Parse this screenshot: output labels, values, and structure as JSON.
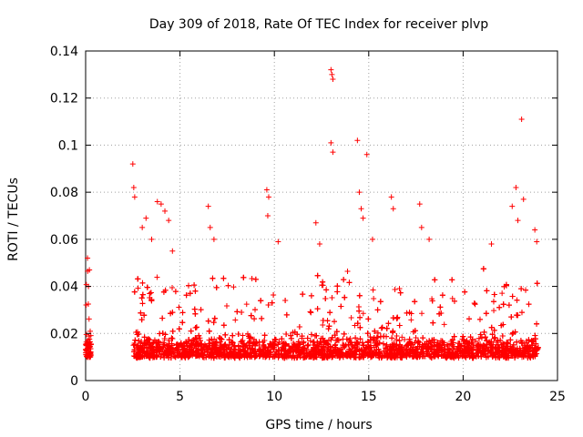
{
  "chart_data": {
    "type": "scatter",
    "title": "Day 309 of 2018, Rate Of TEC Index for receiver plvp",
    "xlabel": "GPS time / hours",
    "ylabel": "ROTI / TECUs",
    "xlim": [
      0,
      25
    ],
    "ylim": [
      0,
      0.14
    ],
    "xticks": [
      0,
      5,
      10,
      15,
      20,
      25
    ],
    "xtick_labels": [
      "0",
      "5",
      "10",
      "15",
      "20",
      "25"
    ],
    "yticks": [
      0,
      0.02,
      0.04,
      0.06,
      0.08,
      0.1,
      0.12,
      0.14
    ],
    "ytick_labels": [
      "0",
      "0.02",
      "0.04",
      "0.06",
      "0.08",
      "0.1",
      "0.12",
      "0.14"
    ],
    "grid": true,
    "marker": "+",
    "marker_color": "#ff0000",
    "series": [
      {
        "name": "ROTI",
        "segments": [
          {
            "x_start": 0.0,
            "x_end": 0.3,
            "y_base": 0.015,
            "y_spread": 0.012
          },
          {
            "x_start": 2.5,
            "x_end": 24.0,
            "y_base": 0.015,
            "y_spread": 0.012
          }
        ],
        "outliers": [
          {
            "x": 0.1,
            "y": 0.052
          },
          {
            "x": 0.2,
            "y": 0.047
          },
          {
            "x": 0.15,
            "y": 0.04
          },
          {
            "x": 2.5,
            "y": 0.092
          },
          {
            "x": 2.55,
            "y": 0.082
          },
          {
            "x": 2.6,
            "y": 0.078
          },
          {
            "x": 3.0,
            "y": 0.065
          },
          {
            "x": 3.2,
            "y": 0.069
          },
          {
            "x": 3.5,
            "y": 0.06
          },
          {
            "x": 3.8,
            "y": 0.076
          },
          {
            "x": 4.0,
            "y": 0.075
          },
          {
            "x": 4.2,
            "y": 0.072
          },
          {
            "x": 4.4,
            "y": 0.068
          },
          {
            "x": 4.6,
            "y": 0.055
          },
          {
            "x": 6.5,
            "y": 0.074
          },
          {
            "x": 6.6,
            "y": 0.065
          },
          {
            "x": 6.8,
            "y": 0.06
          },
          {
            "x": 9.6,
            "y": 0.081
          },
          {
            "x": 9.7,
            "y": 0.078
          },
          {
            "x": 9.65,
            "y": 0.07
          },
          {
            "x": 10.2,
            "y": 0.059
          },
          {
            "x": 12.2,
            "y": 0.067
          },
          {
            "x": 12.4,
            "y": 0.058
          },
          {
            "x": 13.0,
            "y": 0.132
          },
          {
            "x": 13.05,
            "y": 0.13
          },
          {
            "x": 13.1,
            "y": 0.128
          },
          {
            "x": 13.0,
            "y": 0.101
          },
          {
            "x": 13.1,
            "y": 0.097
          },
          {
            "x": 14.4,
            "y": 0.102
          },
          {
            "x": 14.5,
            "y": 0.08
          },
          {
            "x": 14.6,
            "y": 0.073
          },
          {
            "x": 14.7,
            "y": 0.069
          },
          {
            "x": 14.9,
            "y": 0.096
          },
          {
            "x": 15.2,
            "y": 0.06
          },
          {
            "x": 16.2,
            "y": 0.078
          },
          {
            "x": 16.3,
            "y": 0.073
          },
          {
            "x": 17.7,
            "y": 0.075
          },
          {
            "x": 17.8,
            "y": 0.065
          },
          {
            "x": 18.2,
            "y": 0.06
          },
          {
            "x": 21.5,
            "y": 0.058
          },
          {
            "x": 22.6,
            "y": 0.074
          },
          {
            "x": 22.8,
            "y": 0.082
          },
          {
            "x": 22.9,
            "y": 0.068
          },
          {
            "x": 23.1,
            "y": 0.111
          },
          {
            "x": 23.2,
            "y": 0.077
          },
          {
            "x": 23.8,
            "y": 0.064
          },
          {
            "x": 23.9,
            "y": 0.059
          }
        ]
      }
    ]
  }
}
